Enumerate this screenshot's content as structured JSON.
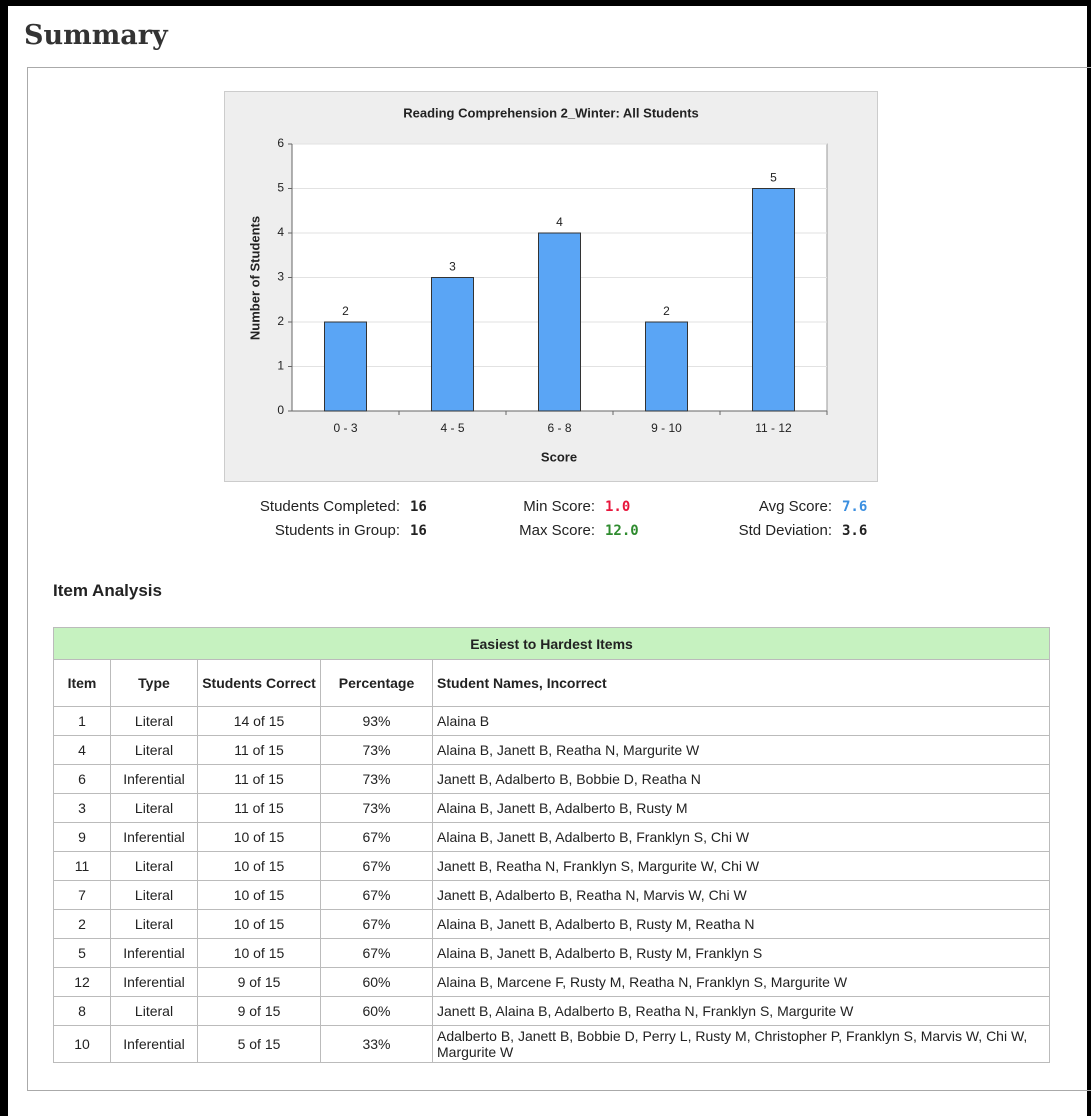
{
  "header": {
    "title": "Summary"
  },
  "chart_data": {
    "type": "bar",
    "title": "Reading Comprehension 2_Winter: All Students",
    "x_label": "Score",
    "y_label": "Number of Students",
    "categories": [
      "0 - 3",
      "4 - 5",
      "6 - 8",
      "9 - 10",
      "11 - 12"
    ],
    "values": [
      2,
      3,
      4,
      2,
      5
    ],
    "color": "#5aa5f5",
    "ylim": [
      0,
      6
    ],
    "yticks": [
      0,
      1,
      2,
      3,
      4,
      5,
      6
    ],
    "grid": true
  },
  "stats": [
    {
      "label": "Students Completed:",
      "value": "16",
      "color": "#222222"
    },
    {
      "label": "Min Score:",
      "value": "1.0",
      "color": "#e8163c"
    },
    {
      "label": "Avg Score:",
      "value": "7.6",
      "color": "#3b8fe0"
    },
    {
      "label": "Students in Group:",
      "value": "16",
      "color": "#222222"
    },
    {
      "label": "Max Score:",
      "value": "12.0",
      "color": "#2e8b2e"
    },
    {
      "label": "Std Deviation:",
      "value": "3.6",
      "color": "#222222"
    }
  ],
  "item_analysis": {
    "heading": "Item Analysis",
    "table": {
      "title": "Easiest to Hardest Items",
      "columns": [
        "Item",
        "Type",
        "Students Correct",
        "Percentage",
        "Student Names, Incorrect"
      ],
      "rows": [
        [
          "1",
          "Literal",
          "14 of 15",
          "93%",
          "Alaina B"
        ],
        [
          "4",
          "Literal",
          "11 of 15",
          "73%",
          "Alaina B, Janett B, Reatha N, Margurite W"
        ],
        [
          "6",
          "Inferential",
          "11 of 15",
          "73%",
          "Janett B, Adalberto B, Bobbie D, Reatha N"
        ],
        [
          "3",
          "Literal",
          "11 of 15",
          "73%",
          "Alaina B, Janett B, Adalberto B, Rusty M"
        ],
        [
          "9",
          "Inferential",
          "10 of 15",
          "67%",
          "Alaina B, Janett B, Adalberto B, Franklyn S, Chi W"
        ],
        [
          "11",
          "Literal",
          "10 of 15",
          "67%",
          "Janett B, Reatha N, Franklyn S, Margurite W, Chi W"
        ],
        [
          "7",
          "Literal",
          "10 of 15",
          "67%",
          "Janett B, Adalberto B, Reatha N, Marvis W, Chi W"
        ],
        [
          "2",
          "Literal",
          "10 of 15",
          "67%",
          "Alaina B, Janett B, Adalberto B, Rusty M, Reatha N"
        ],
        [
          "5",
          "Inferential",
          "10 of 15",
          "67%",
          "Alaina B, Janett B, Adalberto B, Rusty M, Franklyn S"
        ],
        [
          "12",
          "Inferential",
          "9 of 15",
          "60%",
          "Alaina B, Marcene F, Rusty M, Reatha N, Franklyn S, Margurite W"
        ],
        [
          "8",
          "Literal",
          "9 of 15",
          "60%",
          "Janett B, Alaina B, Adalberto B, Reatha N, Franklyn S, Margurite W"
        ],
        [
          "10",
          "Inferential",
          "5 of 15",
          "33%",
          "Adalberto B, Janett B, Bobbie D, Perry L, Rusty M, Christopher P, Franklyn S, Marvis W, Chi W, Margurite W"
        ]
      ]
    }
  }
}
